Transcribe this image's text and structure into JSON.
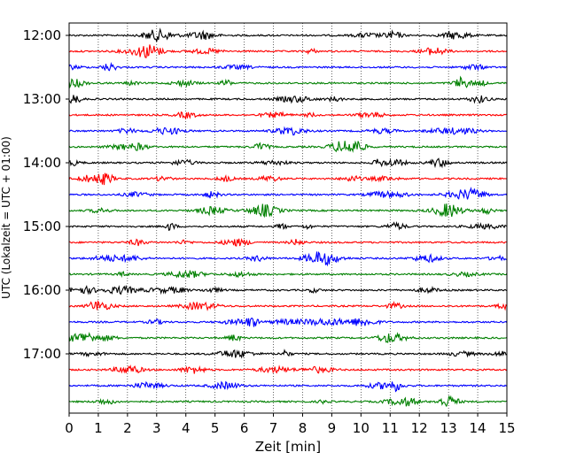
{
  "chart_data": {
    "type": "line",
    "title": "",
    "xlabel": "Zeit  [min]",
    "ylabel": "UTC (Lokalzeit = UTC + 01:00)",
    "xlim": [
      0,
      15
    ],
    "x_ticks": [
      0,
      1,
      2,
      3,
      4,
      5,
      6,
      7,
      8,
      9,
      10,
      11,
      12,
      13,
      14,
      15
    ],
    "x_grid": "dotted-vertical",
    "y_direction": "time-increasing-downward",
    "y_start": "12:00",
    "trace_interval_min": 15,
    "y_ticks": [
      "12:00",
      "13:00",
      "14:00",
      "15:00",
      "16:00",
      "17:00"
    ],
    "trace_colors": [
      "#000000",
      "#ff0000",
      "#0000ff",
      "#008000"
    ],
    "series": [
      {
        "start": "12:00",
        "color": "#000000"
      },
      {
        "start": "12:15",
        "color": "#ff0000"
      },
      {
        "start": "12:30",
        "color": "#0000ff"
      },
      {
        "start": "12:45",
        "color": "#008000"
      },
      {
        "start": "13:00",
        "color": "#000000"
      },
      {
        "start": "13:15",
        "color": "#ff0000"
      },
      {
        "start": "13:30",
        "color": "#0000ff"
      },
      {
        "start": "13:45",
        "color": "#008000"
      },
      {
        "start": "14:00",
        "color": "#000000"
      },
      {
        "start": "14:15",
        "color": "#ff0000"
      },
      {
        "start": "14:30",
        "color": "#0000ff"
      },
      {
        "start": "14:45",
        "color": "#008000"
      },
      {
        "start": "15:00",
        "color": "#000000"
      },
      {
        "start": "15:15",
        "color": "#ff0000"
      },
      {
        "start": "15:30",
        "color": "#0000ff"
      },
      {
        "start": "15:45",
        "color": "#008000"
      },
      {
        "start": "16:00",
        "color": "#000000"
      },
      {
        "start": "16:15",
        "color": "#ff0000"
      },
      {
        "start": "16:30",
        "color": "#0000ff"
      },
      {
        "start": "16:45",
        "color": "#008000"
      },
      {
        "start": "17:00",
        "color": "#000000"
      },
      {
        "start": "17:15",
        "color": "#ff0000"
      },
      {
        "start": "17:30",
        "color": "#0000ff"
      },
      {
        "start": "17:45",
        "color": "#008000"
      }
    ]
  }
}
